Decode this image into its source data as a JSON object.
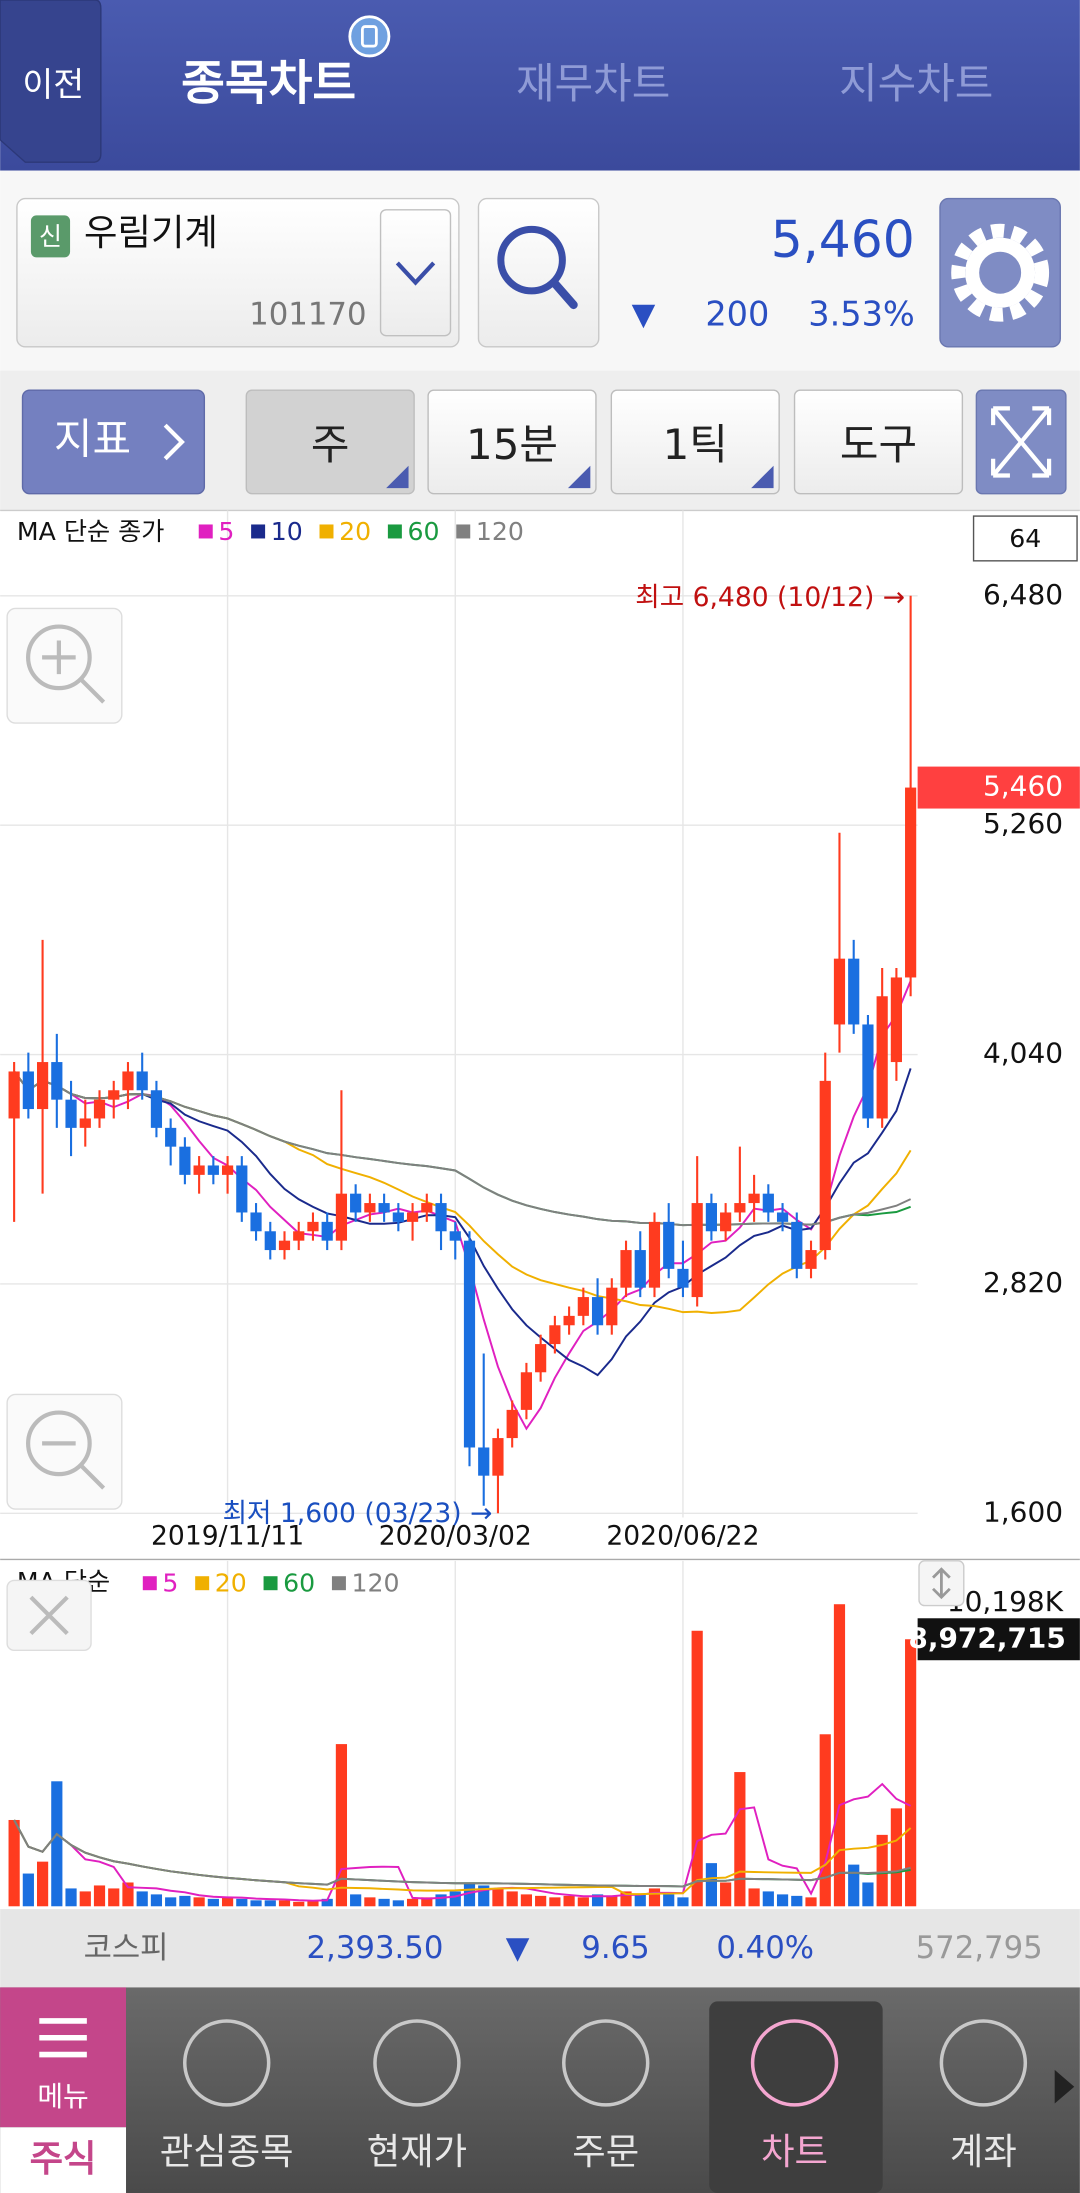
{
  "header": {
    "back": "이전",
    "tabs": [
      "종목차트",
      "재무차트",
      "지수차트"
    ]
  },
  "stock": {
    "badge": "신",
    "name": "우림기계",
    "code": "101170",
    "price": "5,460",
    "arrow": "▼",
    "change": "200",
    "rate": "3.53%"
  },
  "toolbar": {
    "indicator": "지표",
    "buttons": [
      "주",
      "15분",
      "1틱",
      "도구"
    ]
  },
  "chart": {
    "type": "candlestick",
    "legend": "MA 단순 종가",
    "ma": [
      {
        "name": "5",
        "color": "#e020c0"
      },
      {
        "name": "10",
        "color": "#1a2a8c"
      },
      {
        "name": "20",
        "color": "#f0b000"
      },
      {
        "name": "60",
        "color": "#1a9a40"
      },
      {
        "name": "120",
        "color": "#808080"
      }
    ],
    "count": "64",
    "up_color": "#ff3b1f",
    "down_color": "#1a6fe0",
    "ylim": [
      1600,
      6480
    ],
    "yticks": [
      {
        "value": 1600,
        "label": "1,600"
      },
      {
        "value": 2820,
        "label": "2,820"
      },
      {
        "value": 4040,
        "label": "4,040"
      },
      {
        "value": 5260,
        "label": "5,260"
      },
      {
        "value": 6480,
        "label": "6,480"
      }
    ],
    "grid": true,
    "current": {
      "value": 5460,
      "label": "5,460"
    },
    "high_note": "최고 6,480 (10/12) →",
    "low_note": "최저 1,600 (03/23) →",
    "x": [
      null,
      null,
      null,
      null,
      null,
      null,
      null,
      null,
      null,
      null,
      null,
      null,
      null,
      null,
      null,
      "2019/11/11",
      null,
      null,
      null,
      null,
      null,
      null,
      null,
      null,
      null,
      null,
      null,
      null,
      null,
      null,
      null,
      "2020/03/02",
      null,
      null,
      null,
      null,
      null,
      null,
      null,
      null,
      null,
      null,
      null,
      null,
      null,
      null,
      null,
      "2020/06/22",
      null,
      null,
      null,
      null,
      null,
      null,
      null,
      null,
      null,
      null,
      null,
      null,
      null,
      null,
      null,
      null
    ],
    "open": [
      3700,
      3950,
      3750,
      4000,
      3800,
      3650,
      3700,
      3800,
      3850,
      3950,
      3850,
      3650,
      3550,
      3400,
      3450,
      3400,
      3450,
      3200,
      3100,
      3000,
      3050,
      3100,
      3150,
      3050,
      3300,
      3200,
      3250,
      3200,
      3150,
      3200,
      3250,
      3100,
      3050,
      1950,
      1800,
      2000,
      2150,
      2350,
      2500,
      2600,
      2650,
      2750,
      2600,
      2800,
      3000,
      2800,
      3150,
      2900,
      2750,
      3250,
      3100,
      3200,
      3250,
      3300,
      3200,
      3150,
      2900,
      3000,
      4200,
      4550,
      4200,
      3700,
      4000,
      4450
    ],
    "high": [
      4000,
      4050,
      4650,
      4150,
      3900,
      3800,
      3850,
      3900,
      4000,
      4050,
      3900,
      3700,
      3600,
      3500,
      3500,
      3500,
      3500,
      3250,
      3150,
      3100,
      3150,
      3200,
      3200,
      3850,
      3350,
      3300,
      3300,
      3250,
      3250,
      3300,
      3300,
      3150,
      3100,
      2450,
      2050,
      2200,
      2400,
      2550,
      2650,
      2700,
      2800,
      2850,
      2850,
      3050,
      3100,
      3200,
      3250,
      3050,
      3500,
      3300,
      3250,
      3550,
      3400,
      3350,
      3250,
      3200,
      3050,
      4050,
      5220,
      4650,
      4250,
      4500,
      4500,
      6480
    ],
    "low": [
      3150,
      3700,
      3300,
      3650,
      3500,
      3550,
      3650,
      3700,
      3750,
      3800,
      3600,
      3450,
      3350,
      3300,
      3350,
      3300,
      3150,
      3050,
      2950,
      2950,
      3000,
      3050,
      3000,
      3000,
      3150,
      3150,
      3150,
      3100,
      3050,
      3150,
      3000,
      2950,
      1850,
      1640,
      1600,
      1950,
      2100,
      2300,
      2450,
      2550,
      2600,
      2550,
      2550,
      2750,
      2750,
      2750,
      2850,
      2750,
      2700,
      3050,
      3050,
      3150,
      3150,
      3150,
      3100,
      2850,
      2850,
      2950,
      4050,
      4150,
      3650,
      3650,
      3900,
      4350
    ],
    "close": [
      3950,
      3750,
      4000,
      3800,
      3650,
      3700,
      3800,
      3850,
      3950,
      3850,
      3650,
      3550,
      3400,
      3450,
      3400,
      3450,
      3200,
      3100,
      3000,
      3050,
      3100,
      3150,
      3050,
      3300,
      3200,
      3250,
      3200,
      3150,
      3200,
      3250,
      3100,
      3050,
      1950,
      1800,
      2000,
      2150,
      2350,
      2500,
      2600,
      2650,
      2750,
      2600,
      2800,
      3000,
      2800,
      3150,
      2900,
      2800,
      3250,
      3100,
      3200,
      3250,
      3300,
      3200,
      3150,
      2900,
      3000,
      3900,
      4550,
      4200,
      3700,
      4350,
      4450,
      5460
    ]
  },
  "volume": {
    "type": "bar",
    "legend": "MA 단순",
    "ma": [
      {
        "name": "5",
        "color": "#e020c0"
      },
      {
        "name": "20",
        "color": "#f0b000"
      },
      {
        "name": "60",
        "color": "#1a9a40"
      },
      {
        "name": "120",
        "color": "#808080"
      }
    ],
    "ylim": [
      0,
      10198000
    ],
    "yticks": [
      {
        "value": 10198000,
        "label": "10,198K"
      }
    ],
    "current": {
      "value": 8972715,
      "label": "8,972,715"
    },
    "values": [
      2900000,
      1100000,
      1500000,
      4200000,
      600000,
      500000,
      700000,
      600000,
      800000,
      500000,
      400000,
      300000,
      350000,
      300000,
      250000,
      300000,
      250000,
      200000,
      200000,
      200000,
      150000,
      200000,
      250000,
      5450000,
      400000,
      300000,
      250000,
      200000,
      250000,
      300000,
      400000,
      500000,
      800000,
      700000,
      600000,
      500000,
      400000,
      350000,
      300000,
      350000,
      300000,
      400000,
      350000,
      500000,
      400000,
      600000,
      400000,
      300000,
      9258000,
      1450000,
      800000,
      4510000,
      600000,
      500000,
      400000,
      350000,
      300000,
      5780000,
      10150000,
      1400000,
      800000,
      2400000,
      3290000,
      8972715
    ]
  },
  "index": {
    "name": "코스피",
    "value": "2,393.50",
    "arrow": "▼",
    "change": "9.65",
    "rate": "0.40%",
    "volume": "572,795"
  },
  "nav": {
    "menu": "메뉴",
    "market": "주식",
    "items": [
      "관심종목",
      "현재가",
      "주문",
      "차트",
      "계좌"
    ]
  }
}
